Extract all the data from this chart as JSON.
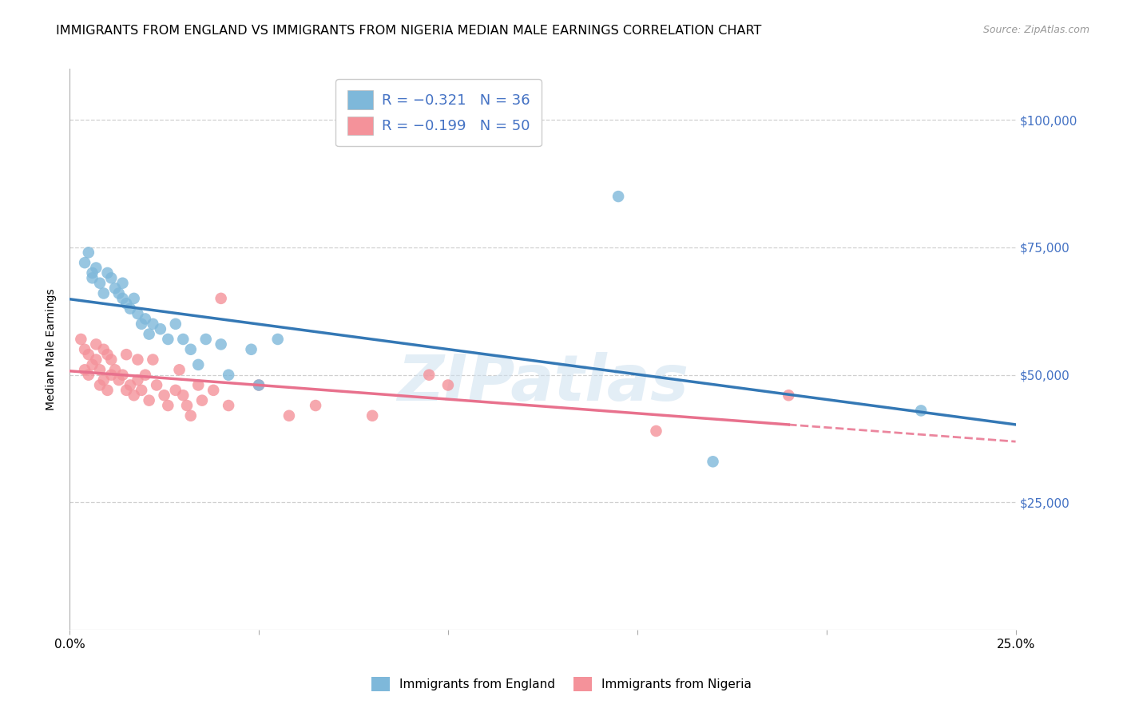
{
  "title": "IMMIGRANTS FROM ENGLAND VS IMMIGRANTS FROM NIGERIA MEDIAN MALE EARNINGS CORRELATION CHART",
  "source": "Source: ZipAtlas.com",
  "ylabel": "Median Male Earnings",
  "xlim": [
    0.0,
    0.25
  ],
  "ylim": [
    0,
    110000
  ],
  "watermark": "ZIPatlas",
  "legend_england_r": "R = -0.321",
  "legend_england_n": "N = 36",
  "legend_nigeria_r": "R = -0.199",
  "legend_nigeria_n": "N = 50",
  "england_color": "#7eb8da",
  "nigeria_color": "#f4929a",
  "england_line_color": "#3478b5",
  "nigeria_line_color": "#e8718d",
  "england_scatter_x": [
    0.004,
    0.005,
    0.006,
    0.006,
    0.007,
    0.008,
    0.009,
    0.01,
    0.011,
    0.012,
    0.013,
    0.014,
    0.014,
    0.015,
    0.016,
    0.017,
    0.018,
    0.019,
    0.02,
    0.021,
    0.022,
    0.024,
    0.026,
    0.028,
    0.03,
    0.032,
    0.034,
    0.036,
    0.04,
    0.042,
    0.048,
    0.05,
    0.055,
    0.145,
    0.17,
    0.225
  ],
  "england_scatter_y": [
    72000,
    74000,
    70000,
    69000,
    71000,
    68000,
    66000,
    70000,
    69000,
    67000,
    66000,
    65000,
    68000,
    64000,
    63000,
    65000,
    62000,
    60000,
    61000,
    58000,
    60000,
    59000,
    57000,
    60000,
    57000,
    55000,
    52000,
    57000,
    56000,
    50000,
    55000,
    48000,
    57000,
    85000,
    33000,
    43000
  ],
  "nigeria_scatter_x": [
    0.003,
    0.004,
    0.004,
    0.005,
    0.005,
    0.006,
    0.007,
    0.007,
    0.008,
    0.008,
    0.009,
    0.009,
    0.01,
    0.01,
    0.011,
    0.011,
    0.012,
    0.013,
    0.014,
    0.015,
    0.015,
    0.016,
    0.017,
    0.018,
    0.018,
    0.019,
    0.02,
    0.021,
    0.022,
    0.023,
    0.025,
    0.026,
    0.028,
    0.029,
    0.03,
    0.031,
    0.032,
    0.034,
    0.035,
    0.038,
    0.04,
    0.042,
    0.05,
    0.058,
    0.065,
    0.08,
    0.095,
    0.1,
    0.155,
    0.19
  ],
  "nigeria_scatter_y": [
    57000,
    55000,
    51000,
    54000,
    50000,
    52000,
    53000,
    56000,
    48000,
    51000,
    55000,
    49000,
    54000,
    47000,
    53000,
    50000,
    51000,
    49000,
    50000,
    47000,
    54000,
    48000,
    46000,
    49000,
    53000,
    47000,
    50000,
    45000,
    53000,
    48000,
    46000,
    44000,
    47000,
    51000,
    46000,
    44000,
    42000,
    48000,
    45000,
    47000,
    65000,
    44000,
    48000,
    42000,
    44000,
    42000,
    50000,
    48000,
    39000,
    46000
  ],
  "background_color": "#ffffff",
  "grid_color": "#d0d0d0",
  "title_fontsize": 11.5,
  "tick_label_color": "#4472c4",
  "tick_label_fontsize": 11,
  "ytick_vals": [
    25000,
    50000,
    75000,
    100000
  ],
  "ytick_labels": [
    "$25,000",
    "$50,000",
    "$75,000",
    "$100,000"
  ]
}
